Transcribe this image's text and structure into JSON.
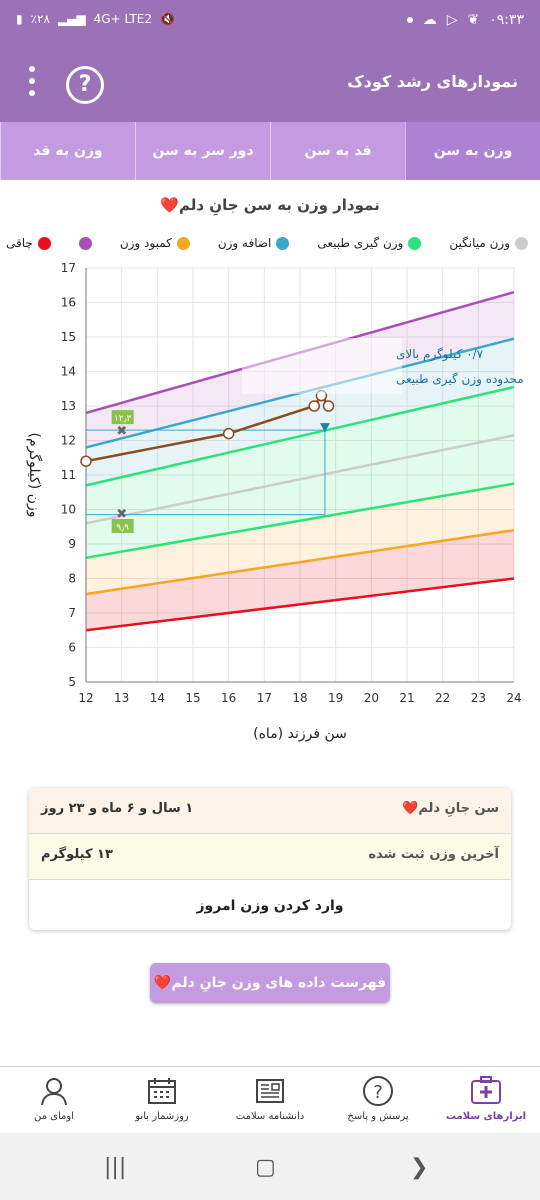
{
  "status_bar": {
    "time": "۰۹:۳۳",
    "battery": "٪۲۸",
    "network": "4G+ LTE2"
  },
  "app_bar": {
    "title": "نمودارهای رشد کودک",
    "help_icon": "question-circle-icon",
    "menu_icon": "kebab-menu-icon"
  },
  "tabs": [
    {
      "label": "وزن به سن",
      "active": true
    },
    {
      "label": "قد به سن",
      "active": false
    },
    {
      "label": "دور سر به سن",
      "active": false
    },
    {
      "label": "وزن به قد",
      "active": false
    }
  ],
  "chart_section": {
    "title": "نمودار وزن به سن جانِ دلم",
    "heart": "❤️"
  },
  "legend": [
    {
      "label": "چاقی",
      "color": "#e8101e"
    },
    {
      "label": "کمبود وزن",
      "color": "#f5a623"
    },
    {
      "label": "اضافه وزن",
      "color": "#3aa7c9"
    },
    {
      "label": "وزن گیری طبیعی",
      "color": "#2ee27a"
    },
    {
      "label": "وزن میانگین",
      "color": "#cccccc"
    }
  ],
  "chart_data": {
    "type": "line",
    "xlabel": "سن فرزند (ماه)",
    "ylabel": "وزن (کیلوگرم)",
    "xlim": [
      12,
      24
    ],
    "ylim": [
      5,
      17
    ],
    "x_ticks": [
      12,
      13,
      14,
      15,
      16,
      17,
      18,
      19,
      20,
      21,
      22,
      23,
      24
    ],
    "y_ticks": [
      5,
      6,
      7,
      8,
      9,
      10,
      11,
      12,
      13,
      14,
      15,
      16,
      17
    ],
    "x_tick_labels": [
      "12",
      "13",
      "14",
      "15",
      "16",
      "17",
      "18",
      "19",
      "20",
      "21",
      "22",
      "23",
      "24"
    ],
    "y_tick_labels": [
      "5",
      "6",
      "7",
      "8",
      "9",
      "10",
      "11",
      "12",
      "13",
      "14",
      "15",
      "16",
      "17"
    ],
    "series": [
      {
        "name": "چاقی",
        "color": "#a850b8",
        "x": [
          12,
          24
        ],
        "y": [
          12.8,
          16.3
        ]
      },
      {
        "name": "اضافه وزن",
        "color": "#3aa7c9",
        "x": [
          12,
          24
        ],
        "y": [
          11.8,
          14.95
        ]
      },
      {
        "name": "وزن گیری طبیعی",
        "color": "#2ee27a",
        "x": [
          12,
          24
        ],
        "y": [
          10.7,
          13.55
        ]
      },
      {
        "name": "وزن میانگین",
        "color": "#cccccc",
        "x": [
          12,
          24
        ],
        "y": [
          9.6,
          12.15
        ]
      },
      {
        "name": "وزن گیری طبیعی",
        "color": "#2ee27a",
        "x": [
          12,
          24
        ],
        "y": [
          8.6,
          10.75
        ]
      },
      {
        "name": "کمبود وزن",
        "color": "#f5a623",
        "x": [
          12,
          24
        ],
        "y": [
          7.55,
          9.4
        ]
      },
      {
        "name": "کمبود وزن",
        "color": "#e8101e",
        "x": [
          12,
          24
        ],
        "y": [
          6.5,
          8.0
        ]
      }
    ],
    "child_series": {
      "color": "#8b4a22",
      "x": [
        12,
        16,
        18.4,
        18.6,
        18.8
      ],
      "y": [
        11.4,
        12.2,
        13.0,
        13.3,
        13.0
      ]
    },
    "markers": [
      {
        "x": 13,
        "y": 12.3,
        "label": "۱۲٫۳"
      },
      {
        "x": 13,
        "y": 9.9,
        "label": "۹٫۹"
      }
    ],
    "current": {
      "x": 18.7,
      "y_lower": 9.85,
      "y_upper": 12.3
    },
    "annotation": {
      "line1": "۰/۷ کیلوگرم بالای",
      "line2": "محدوده وزن گیری طبیعی"
    }
  },
  "info_card": {
    "age_label": "سن جانِ دلم",
    "age_value": "۱ سال و ۶ ماه و ۲۳ روز",
    "last_weight_label": "آخرین وزن ثبت شده",
    "last_weight_value": "۱۳ کیلوگرم",
    "enter_weight_label": "وارد کردن وزن امروز"
  },
  "list_button": {
    "label": "فهرست داده های وزن جانِ دلم"
  },
  "bottom_nav": [
    {
      "label": "ابزارهای سلامت",
      "icon": "health-kit-icon",
      "active": true
    },
    {
      "label": "پرسش و پاسخ",
      "icon": "question-icon",
      "active": false
    },
    {
      "label": "دانشنامه سلامت",
      "icon": "newspaper-icon",
      "active": false
    },
    {
      "label": "روزشمار بانو",
      "icon": "calendar-icon",
      "active": false
    },
    {
      "label": "اومای من",
      "icon": "profile-icon",
      "active": false
    }
  ]
}
